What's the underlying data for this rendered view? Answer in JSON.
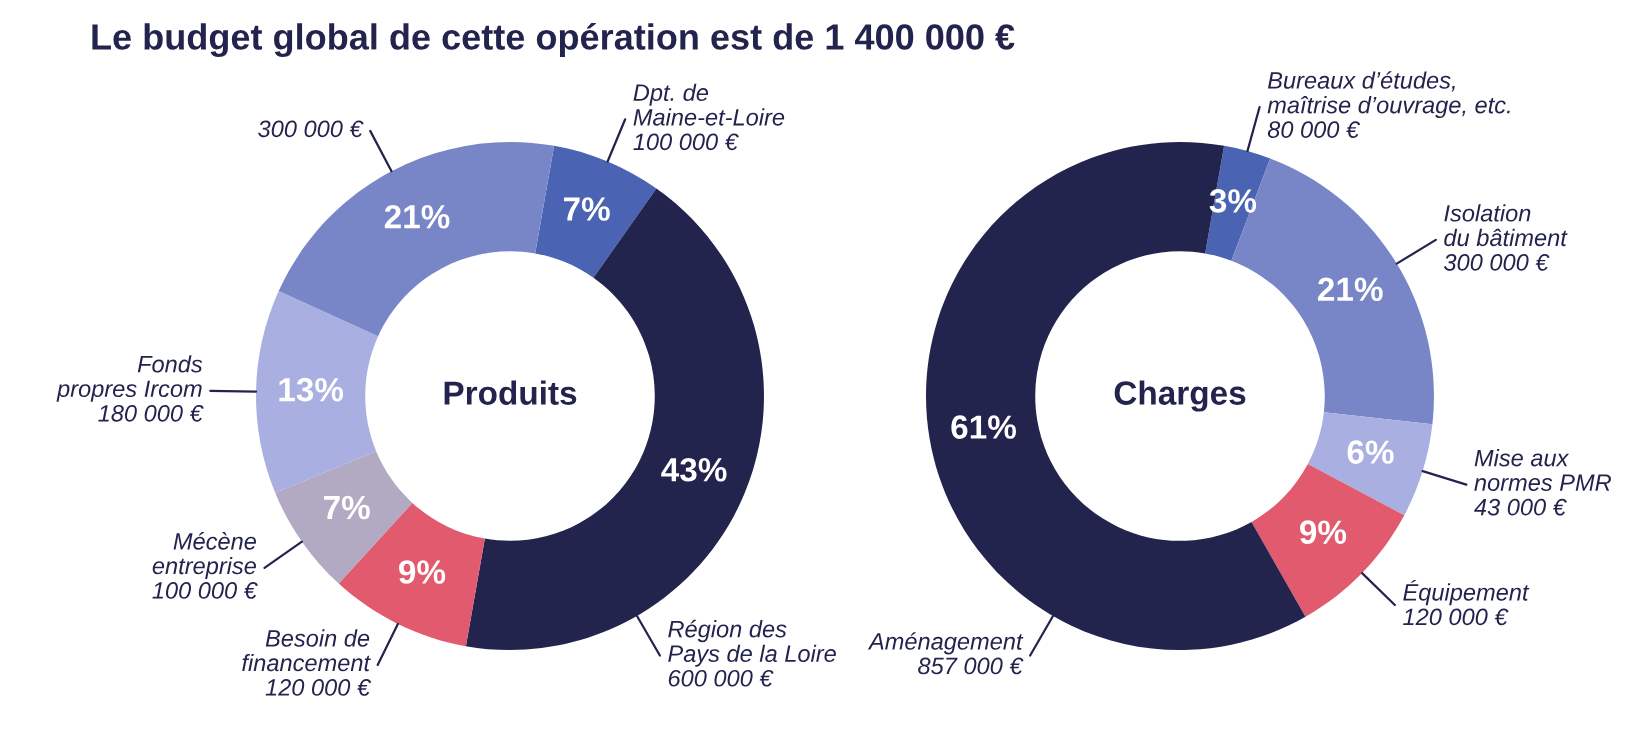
{
  "chart_data": [
    {
      "type": "donut",
      "title": "Produits",
      "annotations": [
        "Le budget global de cette opération est de 1 400 000 €"
      ],
      "categories": [
        "Dpt. de\nMaine-et-Loire\n100 000 €",
        "Région des\nPays de la Loire\n600 000 €",
        "Besoin de\nfinancement\n120 000 €",
        "Mécène\nentreprise\n100 000 €",
        "Fonds\npropres Ircom\n180 000 €",
        "300 000 €"
      ],
      "values": [
        7,
        43,
        9,
        7,
        13,
        21
      ],
      "value_labels": [
        "7%",
        "43%",
        "9%",
        "7%",
        "13%",
        "21%"
      ],
      "colors": [
        "#4a63b3",
        "#23244e",
        "#e25a6e",
        "#b2a9c3",
        "#a9afe0",
        "#7886c8"
      ]
    },
    {
      "type": "donut",
      "title": "Charges",
      "categories": [
        "Bureaux d’études,\nmaîtrise d’ouvrage, etc.\n80 000 €",
        "Isolation\ndu bâtiment\n300 000 €",
        "Mise aux\nnormes PMR\n43 000 €",
        "Équipement\n120 000 €",
        "Aménagement\n857 000 €"
      ],
      "values": [
        3,
        21,
        6,
        9,
        61
      ],
      "value_labels": [
        "3%",
        "21%",
        "6%",
        "9%",
        "61%"
      ],
      "colors": [
        "#4a63b3",
        "#7886c8",
        "#a9afe0",
        "#e25a6e",
        "#23244e"
      ]
    }
  ]
}
